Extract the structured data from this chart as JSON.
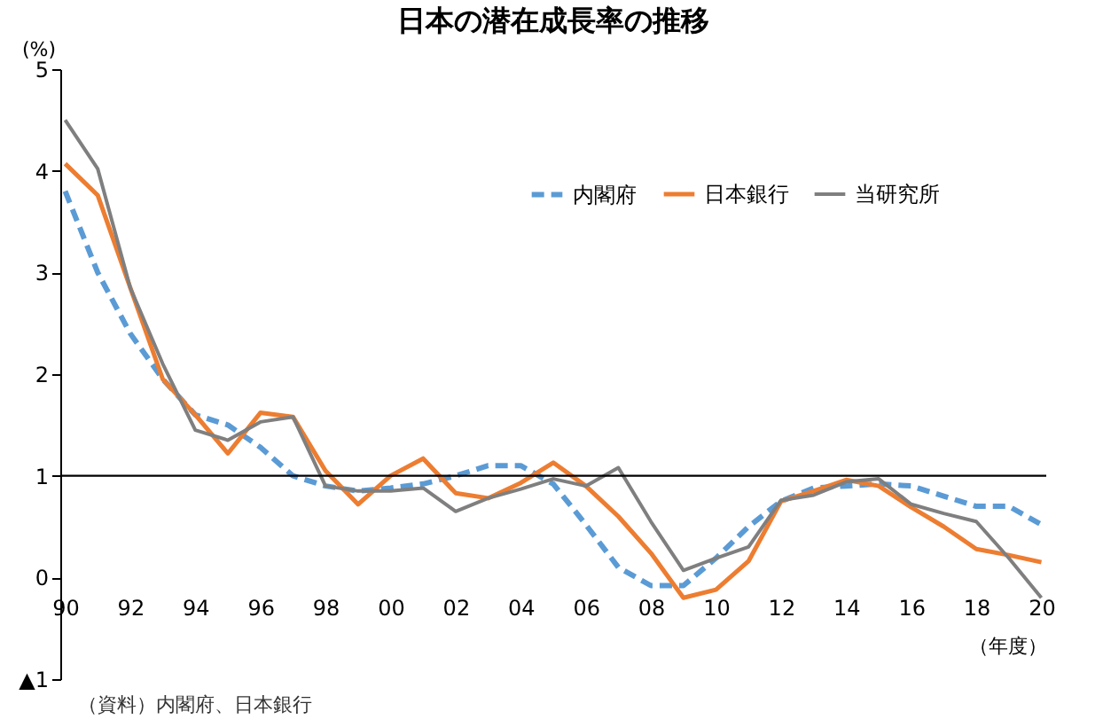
{
  "chart_data": {
    "type": "line",
    "title": "日本の潜在成長率の推移",
    "ylabel": "(%)",
    "xlabel": "（年度）",
    "categories": [
      "90",
      null,
      "92",
      null,
      "94",
      null,
      "96",
      null,
      "98",
      null,
      "00",
      null,
      "02",
      null,
      "04",
      null,
      "06",
      null,
      "08",
      null,
      "10",
      null,
      "12",
      null,
      "14",
      null,
      "16",
      null,
      "18",
      null,
      "20"
    ],
    "series": [
      {
        "name": "内閣府",
        "color": "#5b9bd5",
        "line_style": "dashed",
        "values": [
          3.8,
          3.0,
          2.4,
          1.95,
          1.6,
          1.5,
          1.28,
          1.0,
          0.9,
          0.85,
          0.88,
          0.92,
          1.0,
          1.1,
          1.1,
          0.92,
          0.52,
          0.1,
          -0.08,
          -0.08,
          0.19,
          0.5,
          0.75,
          0.88,
          0.9,
          0.92,
          0.9,
          0.8,
          0.7,
          0.7,
          0.52
        ]
      },
      {
        "name": "日本銀行",
        "color": "#ed7d31",
        "line_style": "solid",
        "values": [
          4.07,
          3.76,
          2.85,
          1.95,
          1.6,
          1.22,
          1.62,
          1.58,
          1.05,
          0.72,
          1.0,
          1.17,
          0.83,
          0.78,
          0.93,
          1.13,
          0.9,
          0.6,
          0.24,
          -0.2,
          -0.12,
          0.16,
          0.75,
          0.85,
          0.96,
          0.9,
          0.69,
          0.5,
          0.28,
          0.22,
          0.15
        ]
      },
      {
        "name": "当研究所",
        "color": "#7f7f7f",
        "line_style": "solid",
        "values": [
          4.5,
          4.02,
          2.85,
          2.1,
          1.45,
          1.35,
          1.53,
          1.58,
          0.9,
          0.85,
          0.85,
          0.88,
          0.65,
          0.78,
          0.87,
          0.97,
          0.9,
          1.08,
          0.55,
          0.07,
          0.19,
          0.3,
          0.76,
          0.81,
          0.94,
          0.97,
          0.72,
          0.63,
          0.55,
          0.19,
          -0.2
        ]
      }
    ],
    "ylim": [
      -1,
      5
    ],
    "yticks": [
      {
        "value": -1,
        "label": "▲1"
      },
      0,
      1,
      2,
      3,
      4,
      5
    ],
    "ref_lines": [
      {
        "axis": "y",
        "value": 1,
        "color": "#000000"
      }
    ],
    "grid": false,
    "legend": "top right",
    "annotations": [
      "（資料）内閣府、日本銀行"
    ]
  }
}
